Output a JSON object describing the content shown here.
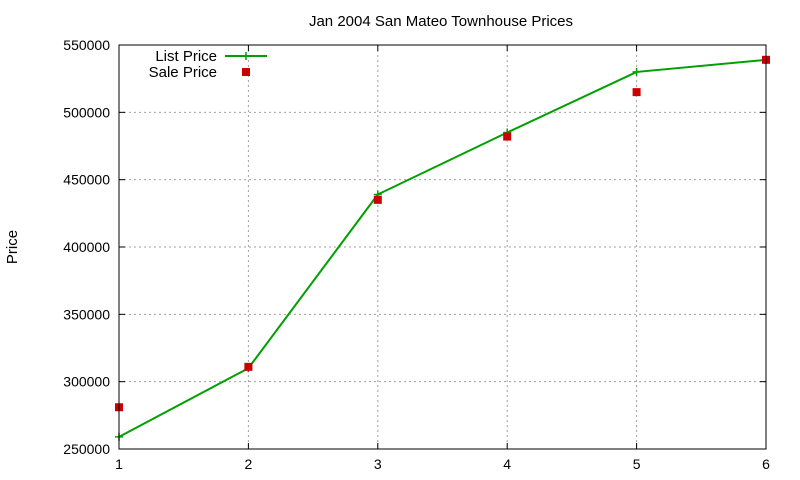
{
  "chart_data": {
    "type": "line",
    "title": "Jan 2004 San Mateo Townhouse Prices",
    "xlabel": "",
    "ylabel": "Price",
    "x": [
      1,
      2,
      3,
      4,
      5,
      6
    ],
    "xlim": [
      1,
      6
    ],
    "ylim": [
      250000,
      550000
    ],
    "xticks": [
      1,
      2,
      3,
      4,
      5,
      6
    ],
    "yticks": [
      250000,
      300000,
      350000,
      400000,
      450000,
      500000,
      550000
    ],
    "grid": true,
    "legend_position": "top-left",
    "series": [
      {
        "name": "List Price",
        "style": "linespoints",
        "marker": "plus",
        "color": "#00a000",
        "values": [
          259000,
          310000,
          439000,
          485000,
          530000,
          539000
        ]
      },
      {
        "name": "Sale Price",
        "style": "points",
        "marker": "square",
        "color": "#cc0000",
        "values": [
          281000,
          311000,
          435000,
          482000,
          515000,
          539000
        ]
      }
    ]
  }
}
